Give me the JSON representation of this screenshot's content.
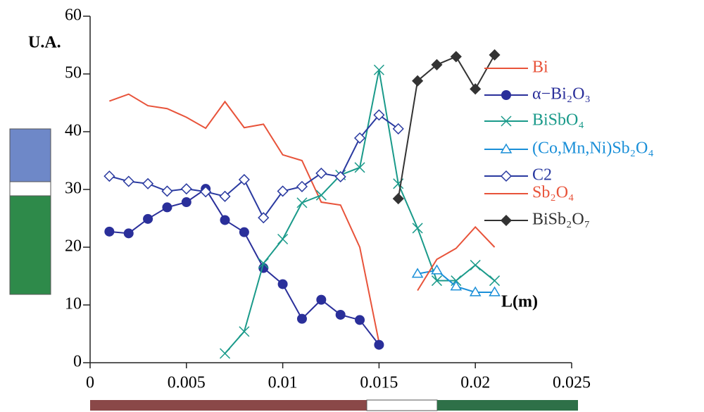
{
  "chart_data": {
    "type": "line",
    "xlabel": "L(m)",
    "ylabel": "U.A.",
    "x": [
      0.001,
      0.002,
      0.003,
      0.004,
      0.005,
      0.006,
      0.007,
      0.008,
      0.009,
      0.01,
      0.011,
      0.012,
      0.013,
      0.014,
      0.015,
      0.016,
      0.017,
      0.018,
      0.019,
      0.02,
      0.021
    ],
    "series": [
      {
        "name": "Bi",
        "color": "#e8533a",
        "marker": "none",
        "values": [
          45.3,
          46.5,
          44.5,
          44,
          42.5,
          40.6,
          45.2,
          40.7,
          41.3,
          36,
          35,
          27.8,
          27.3,
          20,
          3.5,
          null,
          null,
          null,
          null,
          null,
          null
        ]
      },
      {
        "name": "α−Bi₂O₃",
        "color": "#2a2f9a",
        "marker": "circle",
        "values": [
          22.7,
          22.4,
          24.9,
          26.9,
          27.8,
          30.1,
          24.7,
          22.6,
          16.4,
          13.6,
          7.6,
          10.9,
          8.3,
          7.4,
          3.1,
          null,
          null,
          null,
          null,
          null,
          null
        ]
      },
      {
        "name": "BiSbO₄",
        "color": "#1a9a8a",
        "marker": "cross",
        "values": [
          null,
          null,
          null,
          null,
          null,
          null,
          1.6,
          5.4,
          17.2,
          21.4,
          27.7,
          29,
          32.5,
          33.8,
          50.7,
          31,
          23.3,
          14.2,
          14.2,
          16.9,
          14.2
        ]
      },
      {
        "name": "(Co,Mn,Ni)Sb₂O₄",
        "color": "#1a8fd8",
        "marker": "triangle",
        "values": [
          null,
          null,
          null,
          null,
          null,
          null,
          null,
          null,
          null,
          null,
          null,
          null,
          null,
          null,
          null,
          null,
          15.4,
          16,
          13.2,
          12.2,
          12.2
        ]
      },
      {
        "name": "C2",
        "color": "#2a3aa0",
        "marker": "diamond-open",
        "values": [
          32.3,
          31.4,
          31,
          29.7,
          30.1,
          29.6,
          28.8,
          31.7,
          25.1,
          29.7,
          30.5,
          32.8,
          32.2,
          38.9,
          42.9,
          40.5,
          null,
          null,
          null,
          null,
          null
        ]
      },
      {
        "name": "Sb₂O₄",
        "color": "#e8533a",
        "marker": "none",
        "values": [
          null,
          null,
          null,
          null,
          null,
          null,
          null,
          null,
          null,
          null,
          null,
          null,
          null,
          null,
          null,
          null,
          12.5,
          17.9,
          19.8,
          23.5,
          20
        ]
      },
      {
        "name": "BiSb₂O₇",
        "color": "#333333",
        "marker": "diamond",
        "values": [
          null,
          null,
          null,
          null,
          null,
          null,
          null,
          null,
          null,
          null,
          null,
          null,
          null,
          null,
          null,
          28.4,
          48.8,
          51.6,
          53,
          47.4,
          53.3
        ]
      }
    ],
    "xlim": [
      0,
      0.025
    ],
    "xticks": [
      0,
      0.005,
      0.01,
      0.015,
      0.02,
      0.025
    ],
    "ylim": [
      0,
      60
    ],
    "yticks": [
      0,
      10,
      20,
      30,
      40,
      50,
      60
    ]
  }
}
